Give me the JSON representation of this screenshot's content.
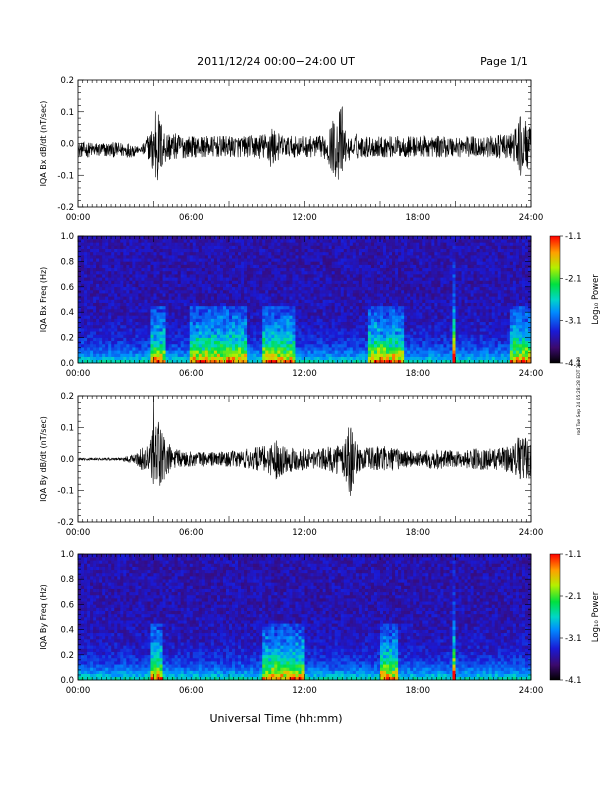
{
  "header": {
    "title": "2011/12/24  00:00−24:00 UT",
    "page": "Page 1/1"
  },
  "xlabel": "Universal Time (hh:mm)",
  "side_stamp": "rod Tue Sep 24 05:28:28 EDT 2019",
  "colorbar": {
    "label": "Log₁₀ Power",
    "ticks": [
      "-1.1",
      "-2.1",
      "-3.1",
      "-4.1"
    ],
    "range": [
      -4.1,
      -1.1
    ]
  },
  "colors": {
    "trace": "#000000",
    "spectrogram_background": "#2a0f5e"
  },
  "chart_data": [
    {
      "type": "line",
      "title": "",
      "ylabel": "IQA Bx dB/dt (nT/sec)",
      "xlabel": "",
      "xlim": [
        0,
        24
      ],
      "ylim": [
        -0.2,
        0.2
      ],
      "x_ticks": [
        "00:00",
        "06:00",
        "12:00",
        "18:00",
        "24:00"
      ],
      "y_ticks": [
        "0.2",
        "0.1",
        "0.0",
        "-0.1",
        "-0.2"
      ],
      "series": [
        {
          "x": [
            0,
            1,
            2,
            3,
            3.9,
            4.0,
            4.1,
            4.2,
            4.4,
            4.6,
            5,
            6,
            7,
            8,
            9,
            10,
            10.2,
            10.6,
            11,
            12,
            13,
            14,
            14.4,
            14.7,
            15,
            16,
            17,
            18,
            19,
            20,
            21,
            22,
            23,
            23.5,
            24
          ],
          "y": [
            -0.02,
            -0.02,
            -0.02,
            -0.02,
            0.05,
            0.2,
            -0.18,
            0.12,
            0.08,
            0.05,
            0.04,
            0.03,
            0.03,
            0.03,
            0.03,
            0.04,
            0.07,
            0.04,
            0.03,
            0.03,
            0.03,
            0.13,
            -0.06,
            0.04,
            0.03,
            0.03,
            0.03,
            0.03,
            0.03,
            0.03,
            0.03,
            0.03,
            0.04,
            0.1,
            0.05
          ]
        }
      ]
    },
    {
      "type": "heatmap",
      "title": "",
      "ylabel": "IQA Bx Freq (Hz)",
      "xlabel": "",
      "xlim": [
        0,
        24
      ],
      "ylim": [
        0,
        1.0
      ],
      "x_ticks": [
        "00:00",
        "06:00",
        "12:00",
        "18:00",
        "24:00"
      ],
      "y_ticks": [
        "1.0",
        "0.8",
        "0.6",
        "0.4",
        "0.2",
        "0.0"
      ],
      "colorbar_range": [
        -4.1,
        -1.1
      ],
      "enhanced_intervals": [
        [
          3.9,
          4.6
        ],
        [
          6.0,
          9.0
        ],
        [
          9.8,
          11.5
        ],
        [
          15.3,
          17.3
        ],
        [
          19.8,
          20.0
        ],
        [
          22.8,
          24.0
        ]
      ]
    },
    {
      "type": "line",
      "title": "",
      "ylabel": "IQA By dB/dt (nT/sec)",
      "xlabel": "",
      "xlim": [
        0,
        24
      ],
      "ylim": [
        -0.2,
        0.2
      ],
      "x_ticks": [
        "00:00",
        "06:00",
        "12:00",
        "18:00",
        "24:00"
      ],
      "y_ticks": [
        "0.2",
        "0.1",
        "0.0",
        "-0.1",
        "-0.2"
      ],
      "series": [
        {
          "x": [
            0,
            1,
            2,
            3,
            3.9,
            4.0,
            4.1,
            4.2,
            4.4,
            4.6,
            5,
            6,
            7,
            8,
            9,
            10,
            10.5,
            11,
            12,
            13,
            14,
            14.4,
            14.7,
            15,
            16,
            17,
            18,
            19,
            20,
            21,
            22,
            23,
            23.5,
            24
          ],
          "y": [
            0.0,
            0.0,
            0.0,
            0.01,
            0.06,
            0.2,
            -0.2,
            0.15,
            0.12,
            0.07,
            0.03,
            0.02,
            0.02,
            0.02,
            0.03,
            0.04,
            0.06,
            0.04,
            0.03,
            0.03,
            0.05,
            0.13,
            0.05,
            0.03,
            0.04,
            0.03,
            0.02,
            0.03,
            0.02,
            0.03,
            0.03,
            0.04,
            0.08,
            0.05
          ]
        }
      ]
    },
    {
      "type": "heatmap",
      "title": "",
      "ylabel": "IQA By Freq (Hz)",
      "xlabel": "",
      "xlim": [
        0,
        24
      ],
      "ylim": [
        0,
        1.0
      ],
      "x_ticks": [
        "00:00",
        "06:00",
        "12:00",
        "18:00",
        "24:00"
      ],
      "y_ticks": [
        "1.0",
        "0.8",
        "0.6",
        "0.4",
        "0.2",
        "0.0"
      ],
      "colorbar_range": [
        -4.1,
        -1.1
      ],
      "enhanced_intervals": [
        [
          3.8,
          4.4
        ],
        [
          9.8,
          12.0
        ],
        [
          16.0,
          17.0
        ],
        [
          19.8,
          20.0
        ]
      ]
    }
  ]
}
